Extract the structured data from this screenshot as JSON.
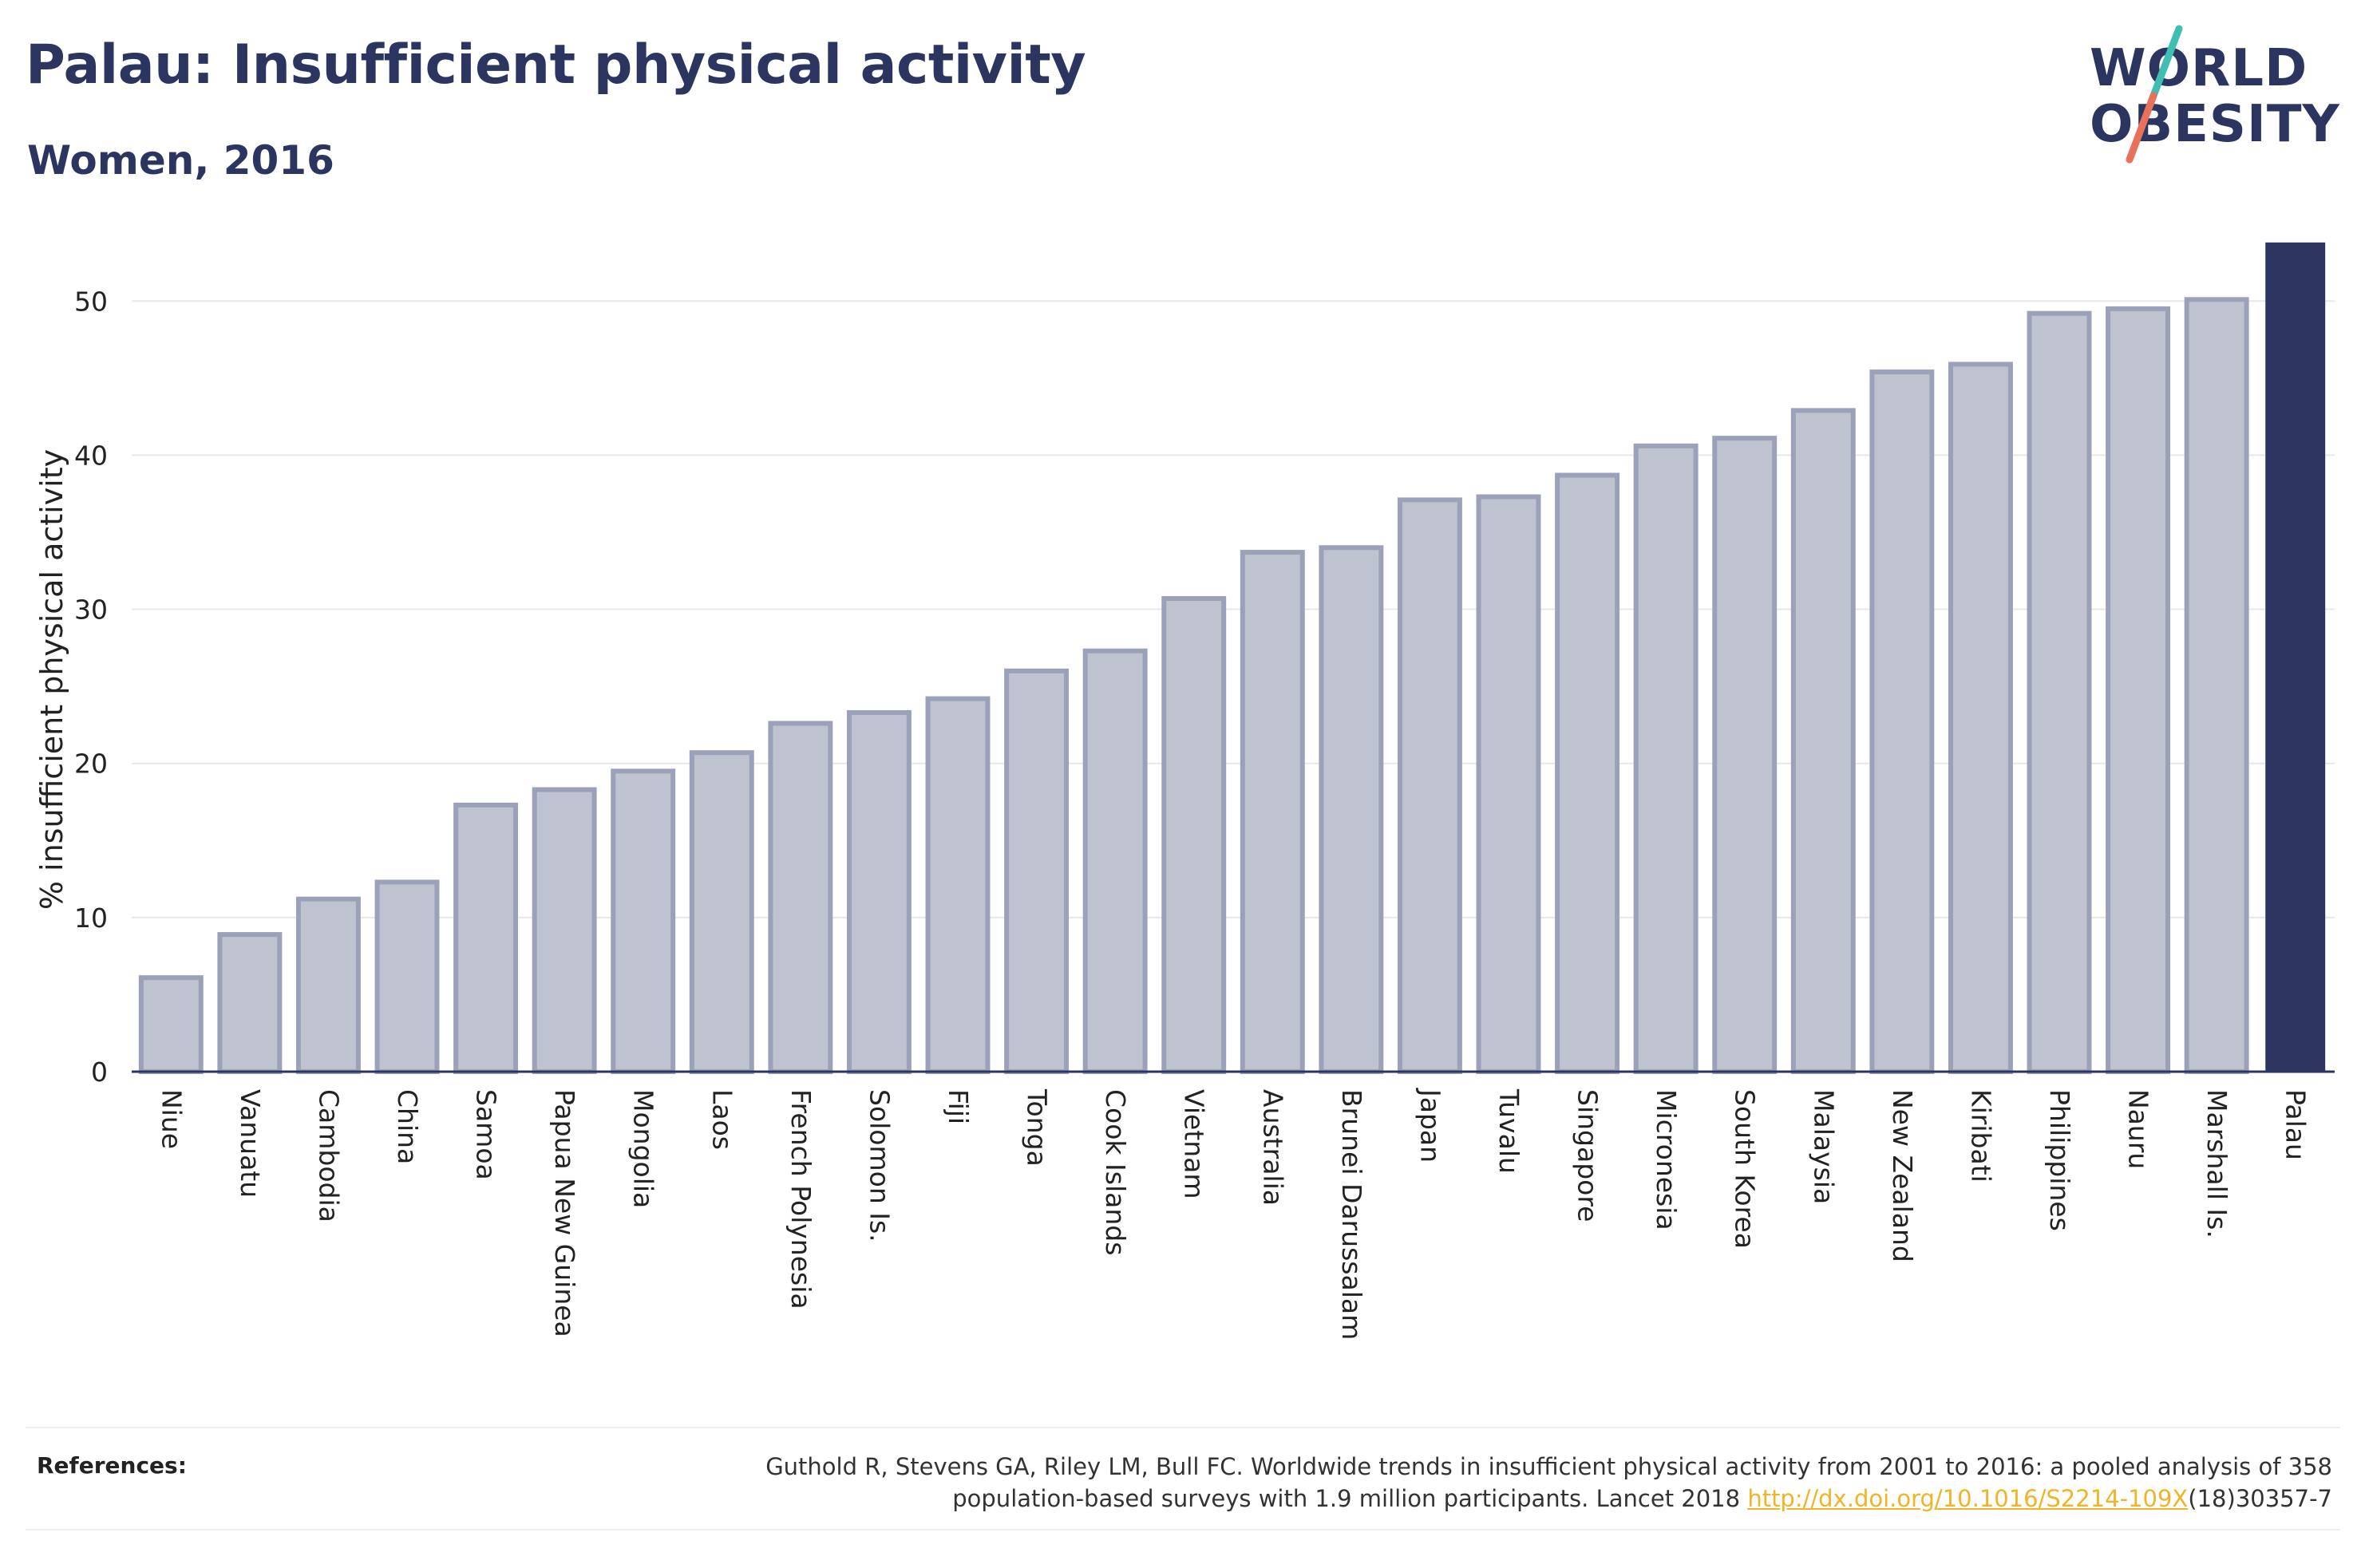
{
  "header": {
    "title": "Palau: Insufficient physical activity",
    "subtitle": "Women, 2016"
  },
  "logo": {
    "line1": "WORLD",
    "line2": "OBESITY",
    "accent_colors": [
      "#3fbfb4",
      "#e8715c"
    ]
  },
  "chart_data": {
    "type": "bar",
    "categories": [
      "Niue",
      "Vanuatu",
      "Cambodia",
      "China",
      "Samoa",
      "Papua New Guinea",
      "Mongolia",
      "Laos",
      "French Polynesia",
      "Solomon Is.",
      "Fiji",
      "Tonga",
      "Cook Islands",
      "Vietnam",
      "Australia",
      "Brunei Darussalam",
      "Japan",
      "Tuvalu",
      "Singapore",
      "Micronesia",
      "South Korea",
      "Malaysia",
      "New Zealand",
      "Kiribati",
      "Philippines",
      "Nauru",
      "Marshall Is.",
      "Palau"
    ],
    "values": [
      6.1,
      8.9,
      11.2,
      12.3,
      17.3,
      18.3,
      19.5,
      20.7,
      22.6,
      23.3,
      24.2,
      26.0,
      27.3,
      30.7,
      33.7,
      34.0,
      37.1,
      37.3,
      38.7,
      40.6,
      41.1,
      42.9,
      45.4,
      45.9,
      49.2,
      49.5,
      50.1,
      53.8
    ],
    "highlight": "Palau",
    "ylabel": "% insufficient physical activity",
    "xlabel": "",
    "ylim": [
      0,
      54
    ],
    "yticks": [
      0,
      10,
      20,
      30,
      40,
      50
    ],
    "grid": true,
    "colors": {
      "bar": "#bfc2cf",
      "bar_border": "#9ba1b8",
      "highlight": "#2c3560",
      "axis": "#2c3560",
      "grid": "#e8e8e8"
    }
  },
  "references": {
    "label": "References:",
    "text_line1": "Guthold R, Stevens GA, Riley LM, Bull FC. Worldwide trends in insufficient physical activity from 2001 to 2016: a pooled analysis of 358",
    "text_line2_pre": "population-based surveys with 1.9 million participants. Lancet 2018 ",
    "link": "http://dx.doi.org/10.1016/S2214-109X",
    "text_line2_post": "(18)30357-7"
  }
}
